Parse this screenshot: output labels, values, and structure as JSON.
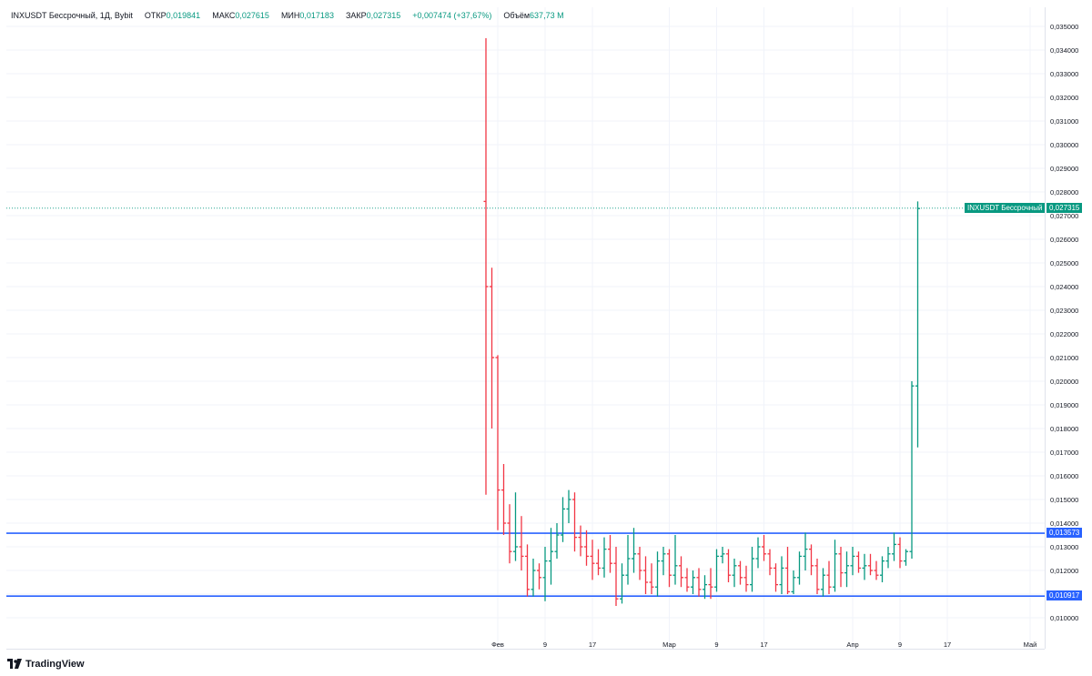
{
  "legend": {
    "symbol": "INXUSDT Бессрочный, 1Д, Bybit",
    "open_label": "ОТКР",
    "open": "0,019841",
    "high_label": "МАКС",
    "high": "0,027615",
    "low_label": "МИН",
    "low": "0,017183",
    "close_label": "ЗАКР",
    "close": "0,027315",
    "change": "+0,007474 (+37,67%)",
    "volume_label": "Объём",
    "volume": "637,73 M"
  },
  "branding": {
    "name": "TradingView",
    "icon": "tradingview-logo-icon"
  },
  "colors": {
    "up": "#089981",
    "down": "#f23645",
    "hline": "#2962ff",
    "grid": "#f0f3fa",
    "axis_text": "#131722",
    "last_price": "#089981"
  },
  "price_tags": {
    "last_label": "INXUSDT Бессрочный",
    "last_value": "0,027315",
    "line_upper": "0,013573",
    "line_lower": "0,010917"
  },
  "chart_data": {
    "type": "ohlc",
    "symbol": "INXUSDT Бессрочный",
    "interval": "1Д",
    "exchange": "Bybit",
    "y_range": [
      0.0095,
      0.0355
    ],
    "y_ticks": [
      "0,035000",
      "0,034000",
      "0,033000",
      "0,032000",
      "0,031000",
      "0,030000",
      "0,029000",
      "0,028000",
      "0,027000",
      "0,026000",
      "0,025000",
      "0,024000",
      "0,023000",
      "0,022000",
      "0,021000",
      "0,020000",
      "0,019000",
      "0,018000",
      "0,017000",
      "0,016000",
      "0,015000",
      "0,014000",
      "0,013000",
      "0,012000",
      "0,011000",
      "0,010000"
    ],
    "x_ticks": [
      {
        "day": 0,
        "label": "Фев"
      },
      {
        "day": 8,
        "label": "9"
      },
      {
        "day": 16,
        "label": "17"
      },
      {
        "day": 29,
        "label": "Мар"
      },
      {
        "day": 37,
        "label": "9"
      },
      {
        "day": 45,
        "label": "17"
      },
      {
        "day": 60,
        "label": "Апр"
      },
      {
        "day": 68,
        "label": "9"
      },
      {
        "day": 76,
        "label": "17"
      },
      {
        "day": 90,
        "label": "Май"
      }
    ],
    "x_range_days": [
      -83,
      95
    ],
    "horizontal_lines": [
      0.013573,
      0.010917
    ],
    "last_price": 0.027315,
    "candles": [
      {
        "d": -2,
        "o": 0.0276,
        "h": 0.0345,
        "l": 0.0152,
        "c": 0.024
      },
      {
        "d": -1,
        "o": 0.024,
        "h": 0.0248,
        "l": 0.018,
        "c": 0.021
      },
      {
        "d": 0,
        "o": 0.021,
        "h": 0.0211,
        "l": 0.0137,
        "c": 0.0154
      },
      {
        "d": 1,
        "o": 0.0154,
        "h": 0.0165,
        "l": 0.0135,
        "c": 0.014
      },
      {
        "d": 2,
        "o": 0.014,
        "h": 0.0148,
        "l": 0.0123,
        "c": 0.0128
      },
      {
        "d": 3,
        "o": 0.0128,
        "h": 0.0153,
        "l": 0.0124,
        "c": 0.013
      },
      {
        "d": 4,
        "o": 0.013,
        "h": 0.0143,
        "l": 0.012,
        "c": 0.0126
      },
      {
        "d": 5,
        "o": 0.0126,
        "h": 0.0131,
        "l": 0.0109,
        "c": 0.0112
      },
      {
        "d": 6,
        "o": 0.0112,
        "h": 0.0125,
        "l": 0.0109,
        "c": 0.012
      },
      {
        "d": 7,
        "o": 0.012,
        "h": 0.0123,
        "l": 0.0112,
        "c": 0.0117
      },
      {
        "d": 8,
        "o": 0.0117,
        "h": 0.013,
        "l": 0.0107,
        "c": 0.0124
      },
      {
        "d": 9,
        "o": 0.0124,
        "h": 0.0138,
        "l": 0.0114,
        "c": 0.0128
      },
      {
        "d": 10,
        "o": 0.0128,
        "h": 0.014,
        "l": 0.0125,
        "c": 0.0135
      },
      {
        "d": 11,
        "o": 0.0135,
        "h": 0.0151,
        "l": 0.0132,
        "c": 0.0146
      },
      {
        "d": 12,
        "o": 0.0146,
        "h": 0.0154,
        "l": 0.014,
        "c": 0.015
      },
      {
        "d": 13,
        "o": 0.015,
        "h": 0.0153,
        "l": 0.0128,
        "c": 0.0134
      },
      {
        "d": 14,
        "o": 0.0134,
        "h": 0.0139,
        "l": 0.0126,
        "c": 0.013
      },
      {
        "d": 15,
        "o": 0.013,
        "h": 0.0137,
        "l": 0.0122,
        "c": 0.0126
      },
      {
        "d": 16,
        "o": 0.0126,
        "h": 0.0133,
        "l": 0.0116,
        "c": 0.0123
      },
      {
        "d": 17,
        "o": 0.0123,
        "h": 0.0129,
        "l": 0.0118,
        "c": 0.0121
      },
      {
        "d": 18,
        "o": 0.0121,
        "h": 0.0134,
        "l": 0.0117,
        "c": 0.0129
      },
      {
        "d": 19,
        "o": 0.0129,
        "h": 0.0135,
        "l": 0.0119,
        "c": 0.0123
      },
      {
        "d": 20,
        "o": 0.0123,
        "h": 0.013,
        "l": 0.0105,
        "c": 0.0108
      },
      {
        "d": 21,
        "o": 0.0108,
        "h": 0.0123,
        "l": 0.0106,
        "c": 0.0118
      },
      {
        "d": 22,
        "o": 0.0118,
        "h": 0.0135,
        "l": 0.0114,
        "c": 0.0125
      },
      {
        "d": 23,
        "o": 0.0125,
        "h": 0.0138,
        "l": 0.0119,
        "c": 0.0127
      },
      {
        "d": 24,
        "o": 0.0127,
        "h": 0.013,
        "l": 0.0116,
        "c": 0.012
      },
      {
        "d": 25,
        "o": 0.012,
        "h": 0.0126,
        "l": 0.011,
        "c": 0.0115
      },
      {
        "d": 26,
        "o": 0.0115,
        "h": 0.0123,
        "l": 0.011,
        "c": 0.0113
      },
      {
        "d": 27,
        "o": 0.0113,
        "h": 0.0128,
        "l": 0.0109,
        "c": 0.0124
      },
      {
        "d": 28,
        "o": 0.0124,
        "h": 0.013,
        "l": 0.0118,
        "c": 0.0127
      },
      {
        "d": 29,
        "o": 0.0127,
        "h": 0.0129,
        "l": 0.0113,
        "c": 0.0118
      },
      {
        "d": 30,
        "o": 0.0118,
        "h": 0.0135,
        "l": 0.0114,
        "c": 0.0122
      },
      {
        "d": 31,
        "o": 0.0122,
        "h": 0.0126,
        "l": 0.0113,
        "c": 0.0117
      },
      {
        "d": 32,
        "o": 0.0117,
        "h": 0.0121,
        "l": 0.0111,
        "c": 0.0113
      },
      {
        "d": 33,
        "o": 0.0113,
        "h": 0.012,
        "l": 0.011,
        "c": 0.0117
      },
      {
        "d": 34,
        "o": 0.0117,
        "h": 0.0121,
        "l": 0.0109,
        "c": 0.0112
      },
      {
        "d": 35,
        "o": 0.0112,
        "h": 0.0118,
        "l": 0.0108,
        "c": 0.0114
      },
      {
        "d": 36,
        "o": 0.0114,
        "h": 0.0121,
        "l": 0.0108,
        "c": 0.0113
      },
      {
        "d": 37,
        "o": 0.0113,
        "h": 0.0129,
        "l": 0.0111,
        "c": 0.0126
      },
      {
        "d": 38,
        "o": 0.0126,
        "h": 0.013,
        "l": 0.0123,
        "c": 0.0127
      },
      {
        "d": 39,
        "o": 0.0127,
        "h": 0.0129,
        "l": 0.0115,
        "c": 0.0118
      },
      {
        "d": 40,
        "o": 0.0118,
        "h": 0.0125,
        "l": 0.0113,
        "c": 0.0122
      },
      {
        "d": 41,
        "o": 0.0122,
        "h": 0.0124,
        "l": 0.0114,
        "c": 0.0117
      },
      {
        "d": 42,
        "o": 0.0117,
        "h": 0.0122,
        "l": 0.0111,
        "c": 0.0114
      },
      {
        "d": 43,
        "o": 0.0114,
        "h": 0.013,
        "l": 0.0111,
        "c": 0.0125
      },
      {
        "d": 44,
        "o": 0.0125,
        "h": 0.0134,
        "l": 0.0121,
        "c": 0.013
      },
      {
        "d": 45,
        "o": 0.013,
        "h": 0.0135,
        "l": 0.0124,
        "c": 0.0127
      },
      {
        "d": 46,
        "o": 0.0127,
        "h": 0.0129,
        "l": 0.0118,
        "c": 0.0121
      },
      {
        "d": 47,
        "o": 0.0121,
        "h": 0.0123,
        "l": 0.0111,
        "c": 0.0114
      },
      {
        "d": 48,
        "o": 0.0114,
        "h": 0.0126,
        "l": 0.011,
        "c": 0.0121
      },
      {
        "d": 49,
        "o": 0.0121,
        "h": 0.013,
        "l": 0.011,
        "c": 0.0111
      },
      {
        "d": 50,
        "o": 0.0111,
        "h": 0.012,
        "l": 0.011,
        "c": 0.0117
      },
      {
        "d": 51,
        "o": 0.0117,
        "h": 0.0128,
        "l": 0.0114,
        "c": 0.0126
      },
      {
        "d": 52,
        "o": 0.0126,
        "h": 0.0136,
        "l": 0.012,
        "c": 0.0129
      },
      {
        "d": 53,
        "o": 0.0129,
        "h": 0.0131,
        "l": 0.0118,
        "c": 0.0122
      },
      {
        "d": 54,
        "o": 0.0122,
        "h": 0.0125,
        "l": 0.011,
        "c": 0.0112
      },
      {
        "d": 55,
        "o": 0.0112,
        "h": 0.0121,
        "l": 0.0109,
        "c": 0.0118
      },
      {
        "d": 56,
        "o": 0.0118,
        "h": 0.0124,
        "l": 0.011,
        "c": 0.0113
      },
      {
        "d": 57,
        "o": 0.0113,
        "h": 0.0133,
        "l": 0.0111,
        "c": 0.0127
      },
      {
        "d": 58,
        "o": 0.0127,
        "h": 0.013,
        "l": 0.0113,
        "c": 0.0119
      },
      {
        "d": 59,
        "o": 0.0119,
        "h": 0.0128,
        "l": 0.0113,
        "c": 0.0122
      },
      {
        "d": 60,
        "o": 0.0122,
        "h": 0.013,
        "l": 0.0118,
        "c": 0.0126
      },
      {
        "d": 61,
        "o": 0.0126,
        "h": 0.0128,
        "l": 0.0119,
        "c": 0.0121
      },
      {
        "d": 62,
        "o": 0.0121,
        "h": 0.0127,
        "l": 0.0116,
        "c": 0.0122
      },
      {
        "d": 63,
        "o": 0.0122,
        "h": 0.0127,
        "l": 0.0118,
        "c": 0.012
      },
      {
        "d": 64,
        "o": 0.012,
        "h": 0.0124,
        "l": 0.0116,
        "c": 0.0118
      },
      {
        "d": 65,
        "o": 0.0118,
        "h": 0.0126,
        "l": 0.0115,
        "c": 0.0124
      },
      {
        "d": 66,
        "o": 0.0124,
        "h": 0.013,
        "l": 0.0121,
        "c": 0.0127
      },
      {
        "d": 67,
        "o": 0.0127,
        "h": 0.0136,
        "l": 0.0124,
        "c": 0.0131
      },
      {
        "d": 68,
        "o": 0.0131,
        "h": 0.0134,
        "l": 0.0121,
        "c": 0.0124
      },
      {
        "d": 69,
        "o": 0.0124,
        "h": 0.0129,
        "l": 0.0122,
        "c": 0.0128
      },
      {
        "d": 70,
        "o": 0.0128,
        "h": 0.02,
        "l": 0.0125,
        "c": 0.0198
      },
      {
        "d": 71,
        "o": 0.0198,
        "h": 0.0276,
        "l": 0.0172,
        "c": 0.0273
      }
    ]
  }
}
